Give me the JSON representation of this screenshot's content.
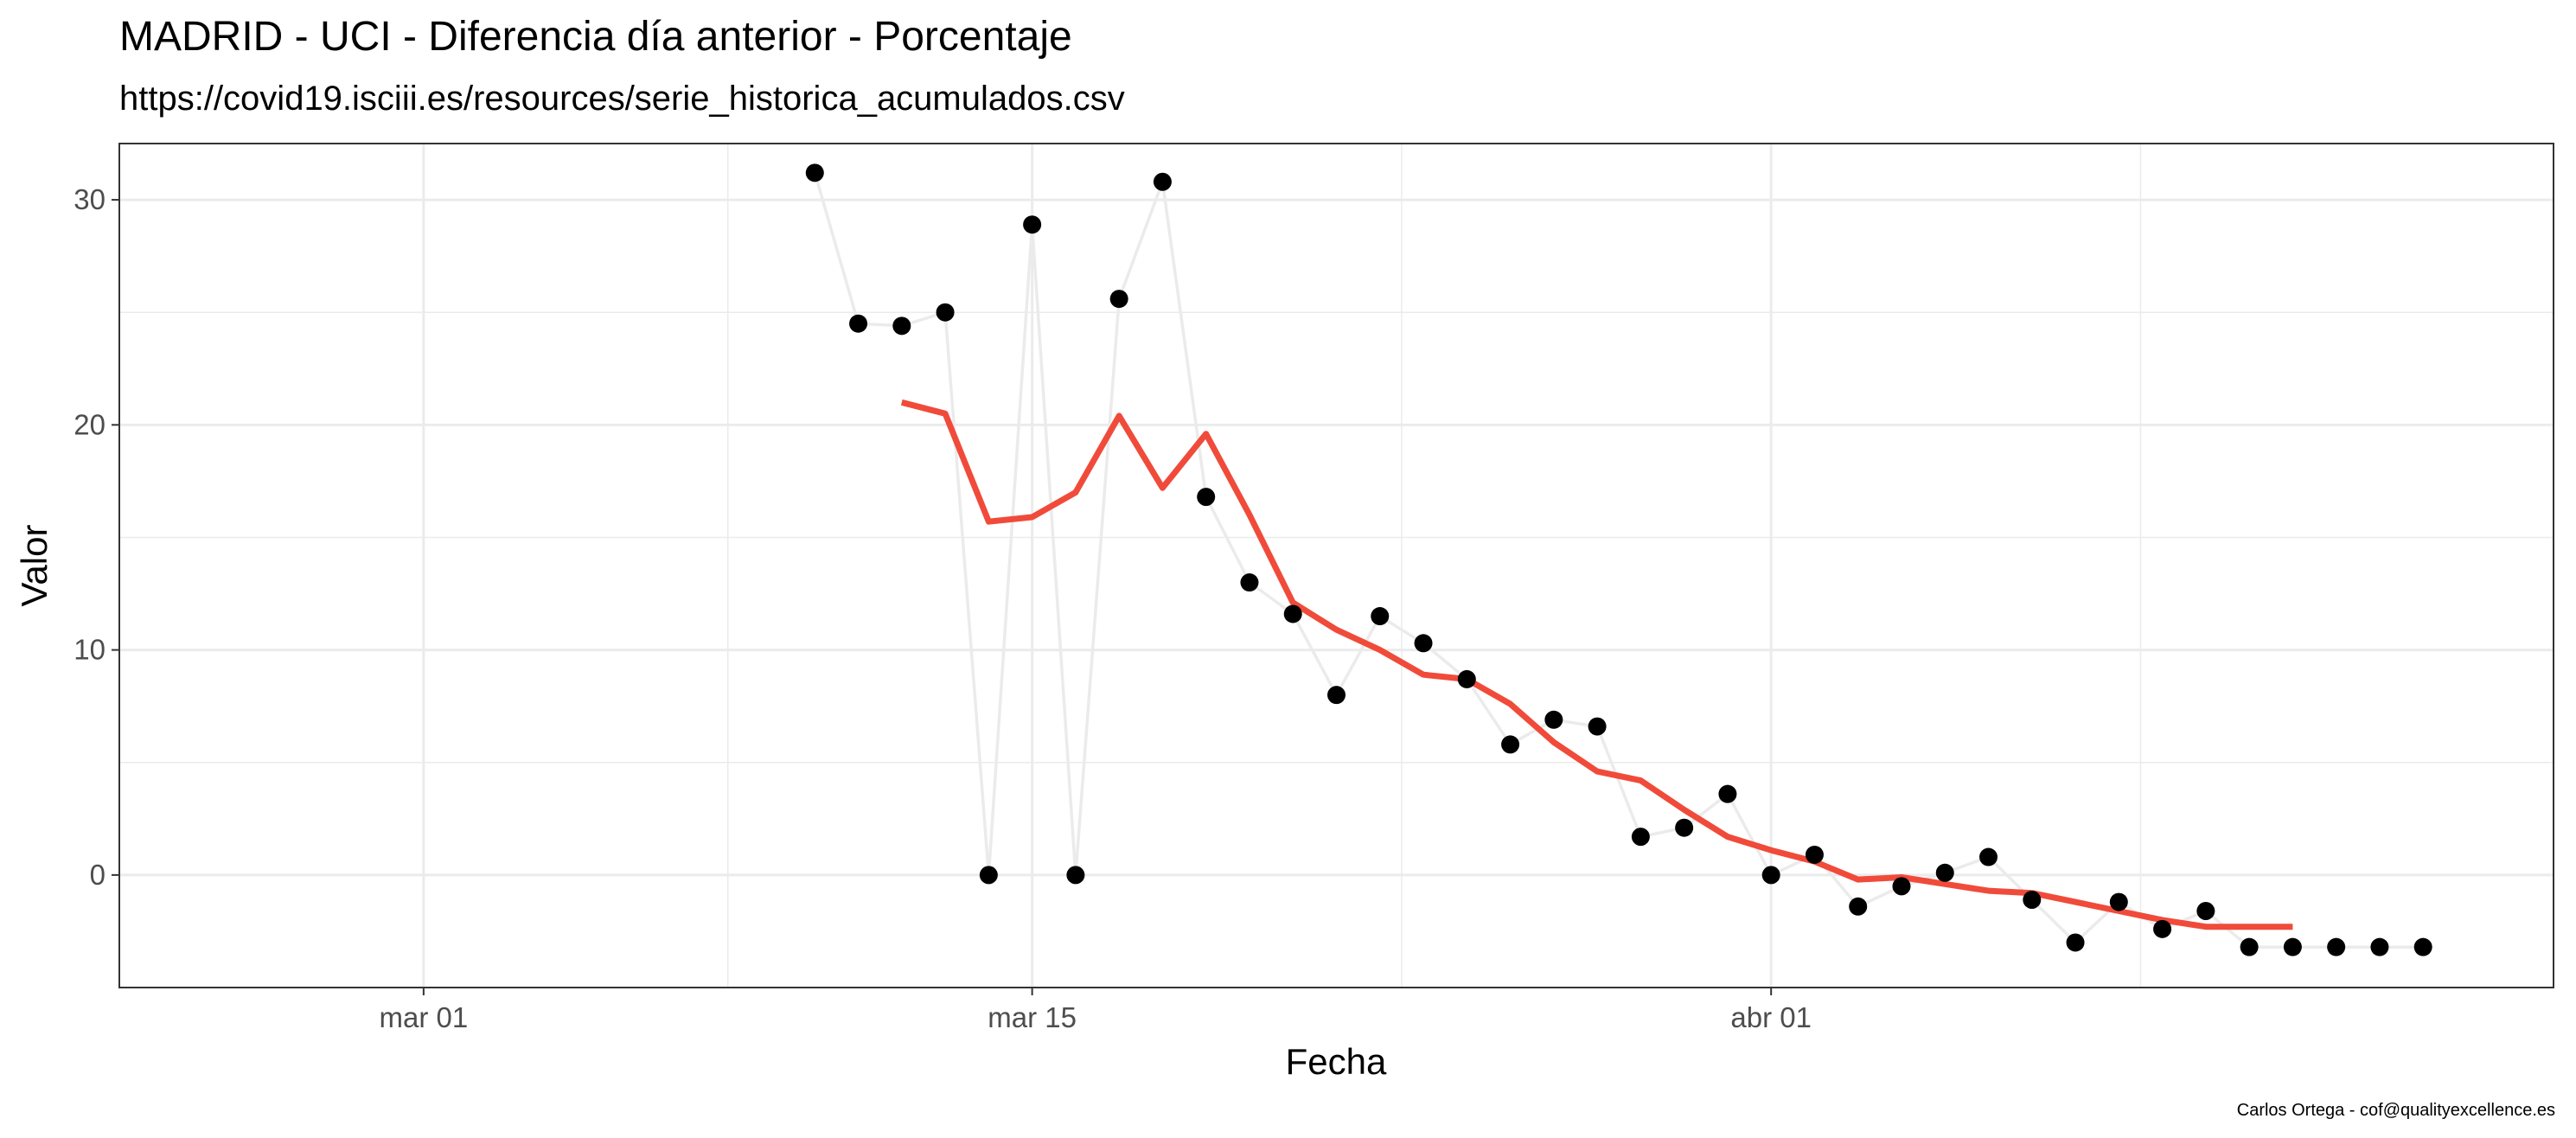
{
  "chart_data": {
    "type": "line",
    "title": "MADRID - UCI - Diferencia día anterior - Porcentaje",
    "subtitle": "https://covid19.isciii.es/resources/serie_historica_acumulados.csv",
    "xlabel": "Fecha",
    "ylabel": "Valor",
    "caption": "Carlos Ortega - cof@qualityexcellence.es",
    "x_ticks": [
      {
        "date": "2020-03-01",
        "label": "mar 01"
      },
      {
        "date": "2020-03-15",
        "label": "mar 15"
      },
      {
        "date": "2020-04-01",
        "label": "abr 01"
      }
    ],
    "y_ticks": [
      0,
      10,
      20,
      30
    ],
    "xlim": [
      "2020-02-23",
      "2020-04-19"
    ],
    "ylim": [
      -5,
      32.5
    ],
    "grid": true,
    "colors": {
      "points": "#000000",
      "raw_line": "#ebebeb",
      "smooth_line": "#f04b3a",
      "grid": "#ebebeb",
      "panel_border": "#333333"
    },
    "series": [
      {
        "style": "points-with-light-line",
        "x": [
          "2020-03-10",
          "2020-03-11",
          "2020-03-12",
          "2020-03-13",
          "2020-03-14",
          "2020-03-15",
          "2020-03-16",
          "2020-03-17",
          "2020-03-18",
          "2020-03-19",
          "2020-03-20",
          "2020-03-21",
          "2020-03-22",
          "2020-03-23",
          "2020-03-24",
          "2020-03-25",
          "2020-03-26",
          "2020-03-27",
          "2020-03-28",
          "2020-03-29",
          "2020-03-30",
          "2020-03-31",
          "2020-04-01",
          "2020-04-02",
          "2020-04-03",
          "2020-04-04",
          "2020-04-05",
          "2020-04-06",
          "2020-04-07",
          "2020-04-08",
          "2020-04-09",
          "2020-04-10",
          "2020-04-11",
          "2020-04-12",
          "2020-04-13",
          "2020-04-14",
          "2020-04-15",
          "2020-04-16"
        ],
        "values": [
          31.2,
          24.5,
          24.4,
          25.0,
          0.0,
          28.9,
          0.0,
          25.6,
          30.8,
          16.8,
          13.0,
          11.6,
          8.0,
          11.5,
          10.3,
          8.7,
          5.8,
          6.9,
          6.6,
          1.7,
          2.1,
          3.6,
          0.0,
          0.9,
          -1.4,
          -0.5,
          0.1,
          0.8,
          -1.1,
          -3.0,
          -1.2,
          -2.4,
          -1.6,
          -3.2,
          -3.2,
          -3.2,
          -3.2,
          -3.2
        ]
      },
      {
        "style": "smoothed-line",
        "x": [
          "2020-03-12",
          "2020-03-13",
          "2020-03-14",
          "2020-03-15",
          "2020-03-16",
          "2020-03-17",
          "2020-03-18",
          "2020-03-19",
          "2020-03-20",
          "2020-03-21",
          "2020-03-22",
          "2020-03-23",
          "2020-03-24",
          "2020-03-25",
          "2020-03-26",
          "2020-03-27",
          "2020-03-28",
          "2020-03-29",
          "2020-03-30",
          "2020-03-31",
          "2020-04-01",
          "2020-04-02",
          "2020-04-03",
          "2020-04-04",
          "2020-04-05",
          "2020-04-06",
          "2020-04-07",
          "2020-04-08",
          "2020-04-09",
          "2020-04-10",
          "2020-04-11",
          "2020-04-12",
          "2020-04-13"
        ],
        "values": [
          21.0,
          20.5,
          15.7,
          15.9,
          17.0,
          20.4,
          17.2,
          19.6,
          16.0,
          12.1,
          10.9,
          10.0,
          8.9,
          8.7,
          7.6,
          5.9,
          4.6,
          4.2,
          2.9,
          1.7,
          1.1,
          0.6,
          -0.2,
          -0.1,
          -0.4,
          -0.7,
          -0.8,
          -1.2,
          -1.6,
          -2.0,
          -2.3,
          -2.3,
          -2.3
        ]
      }
    ]
  }
}
